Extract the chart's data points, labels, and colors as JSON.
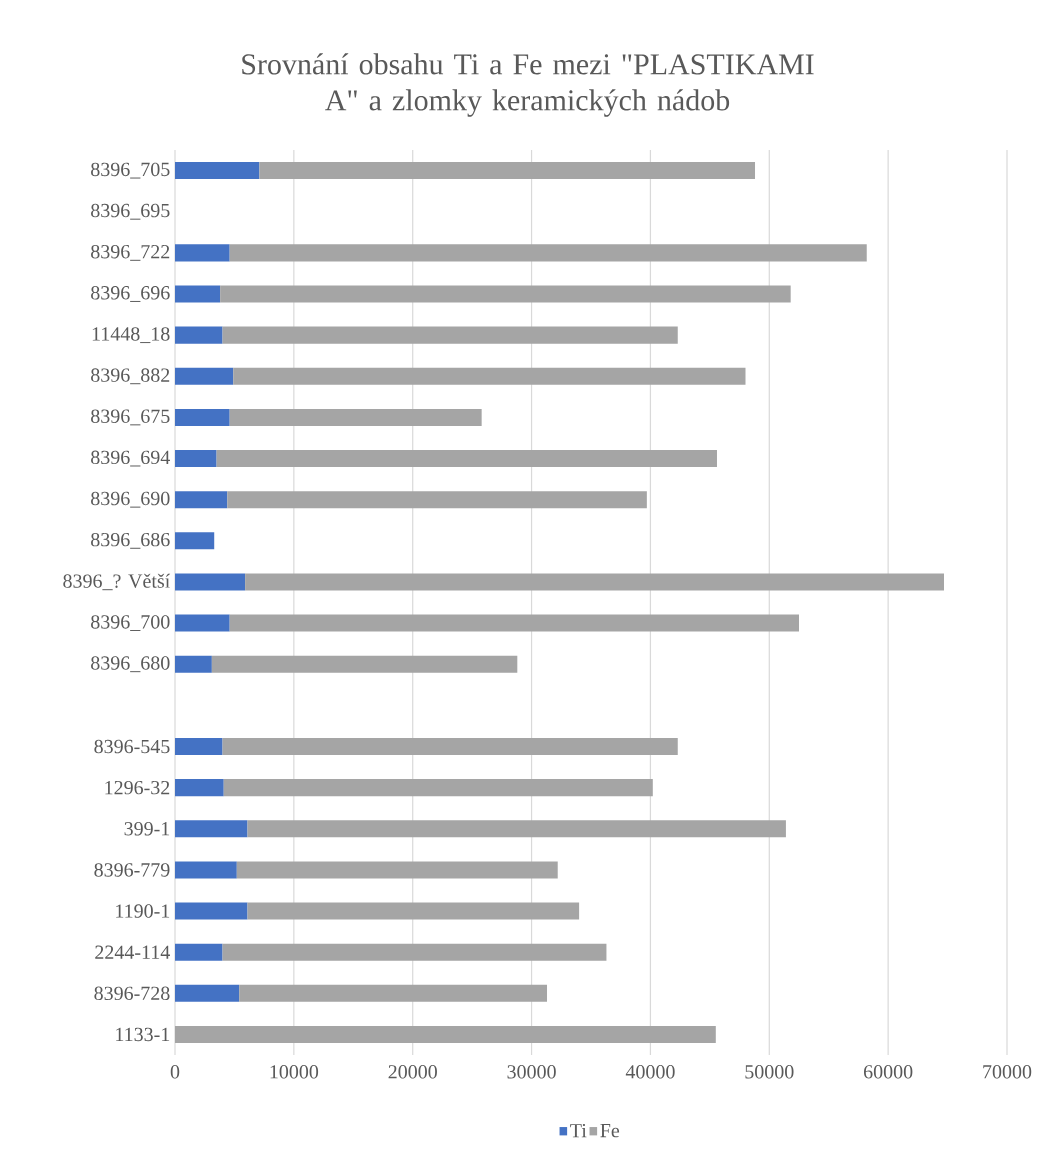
{
  "chart_data": {
    "type": "bar",
    "orientation": "horizontal",
    "stacked": true,
    "title": "Srovnání obsahu Ti a Fe mezi \"PLASTIKAMI A\" a zlomky keramických nádob",
    "categories": [
      "8396_705",
      "8396_695",
      "8396_722",
      "8396_696",
      "11448_18",
      "8396_882",
      "8396_675",
      "8396_694",
      "8396_690",
      "8396_686",
      "8396_? Větší",
      "8396_700",
      "8396_680",
      null,
      "8396-545",
      "1296-32",
      "399-1",
      "8396-779",
      "1190-1",
      "2244-114",
      "8396-728",
      "1133-1"
    ],
    "series": [
      {
        "name": "Ti",
        "color": "#4472c4",
        "values": [
          7100,
          null,
          4600,
          3800,
          4000,
          4900,
          4600,
          3500,
          4400,
          3300,
          5900,
          4600,
          3100,
          null,
          4000,
          4100,
          6100,
          5200,
          6100,
          4000,
          5400,
          null
        ]
      },
      {
        "name": "Fe",
        "color": "#a5a5a5",
        "values": [
          41700,
          null,
          53600,
          48000,
          38300,
          43100,
          21200,
          42100,
          35300,
          null,
          58800,
          47900,
          25700,
          null,
          38300,
          36100,
          45300,
          27000,
          27900,
          32300,
          25900,
          45500
        ]
      }
    ],
    "xlim": [
      0,
      70000
    ],
    "xticks": [
      0,
      10000,
      20000,
      30000,
      40000,
      50000,
      60000,
      70000
    ],
    "grid": "x",
    "legend": "bottom"
  }
}
